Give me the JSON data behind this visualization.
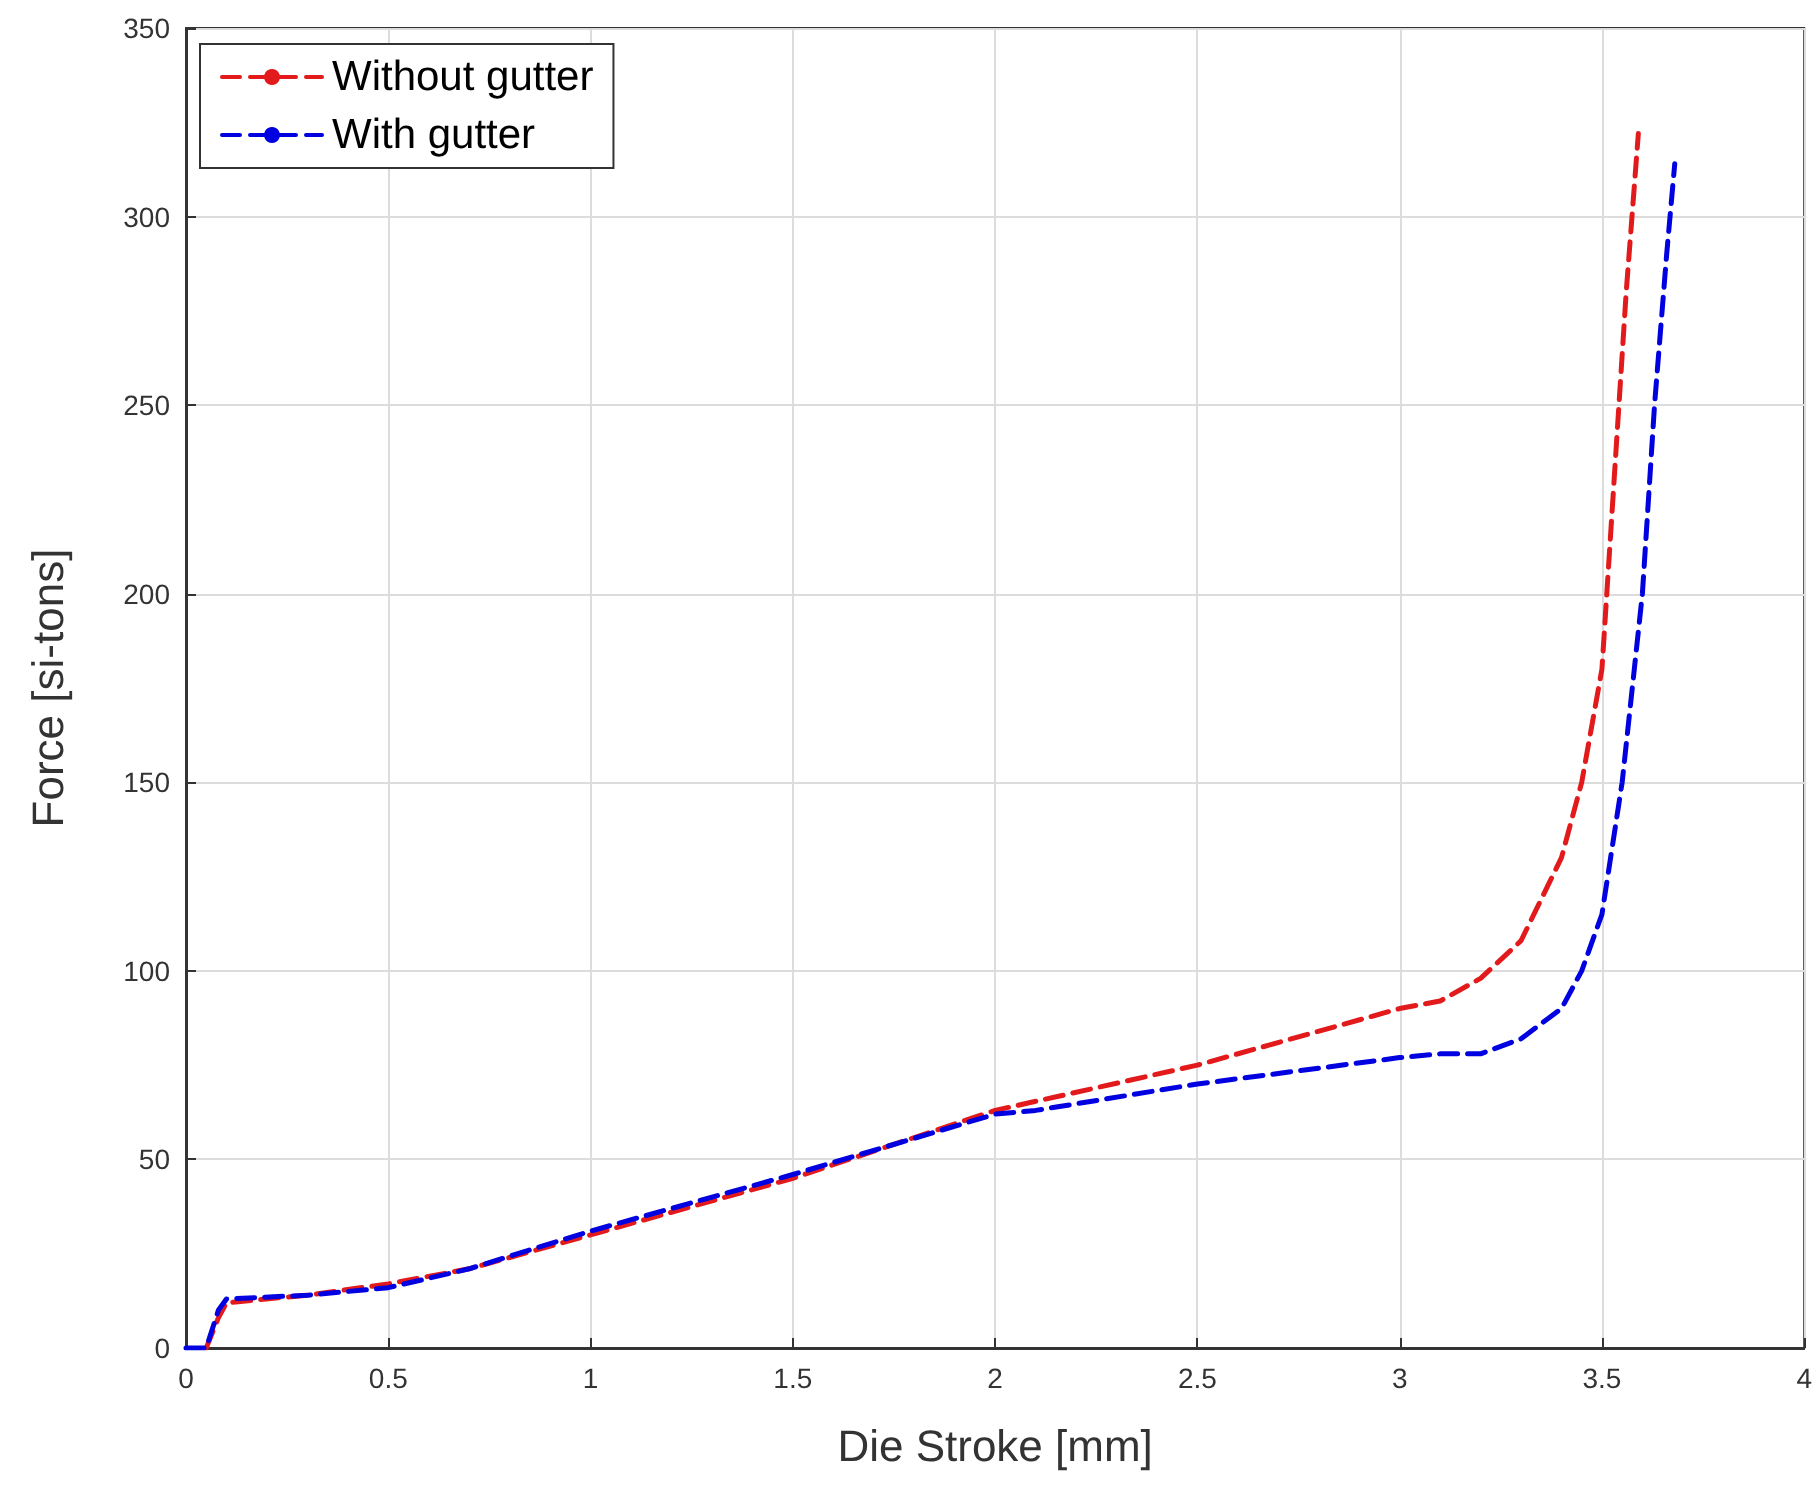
{
  "chart_data": {
    "type": "line",
    "xlabel": "Die Stroke [mm]",
    "ylabel": "Force [si-tons]",
    "xlim": [
      0,
      4
    ],
    "xticks": [
      0,
      0.5,
      1,
      1.5,
      2,
      2.5,
      3,
      3.5,
      4
    ],
    "ylim": [
      0,
      350
    ],
    "yticks": [
      0,
      50,
      100,
      150,
      200,
      250,
      300,
      350
    ],
    "grid": true,
    "legend": "top left",
    "marker": "none",
    "line_style": "dashed",
    "series": [
      {
        "name": "Without gutter",
        "color": "#e31a1c",
        "x": [
          0.05,
          0.08,
          0.1,
          0.3,
          0.5,
          0.7,
          1,
          1.5,
          2,
          2.5,
          3,
          3.1,
          3.2,
          3.3,
          3.4,
          3.45,
          3.5,
          3.53,
          3.56,
          3.59
        ],
        "values": [
          0,
          8,
          12,
          14,
          17,
          21,
          30,
          45,
          63,
          75,
          90,
          92,
          98,
          108,
          130,
          150,
          180,
          230,
          280,
          322
        ]
      },
      {
        "name": "With gutter",
        "color": "#0000e0",
        "x": [
          0,
          0.05,
          0.08,
          0.1,
          0.3,
          0.5,
          0.7,
          1,
          1.5,
          2,
          2.1,
          2.5,
          3,
          3.1,
          3.2,
          3.3,
          3.4,
          3.45,
          3.5,
          3.55,
          3.6,
          3.63,
          3.66,
          3.68
        ],
        "values": [
          0,
          0,
          10,
          13,
          14,
          16,
          21,
          31,
          46,
          62,
          63,
          70,
          77,
          78,
          78,
          82,
          90,
          100,
          115,
          150,
          200,
          250,
          290,
          314
        ]
      }
    ]
  }
}
